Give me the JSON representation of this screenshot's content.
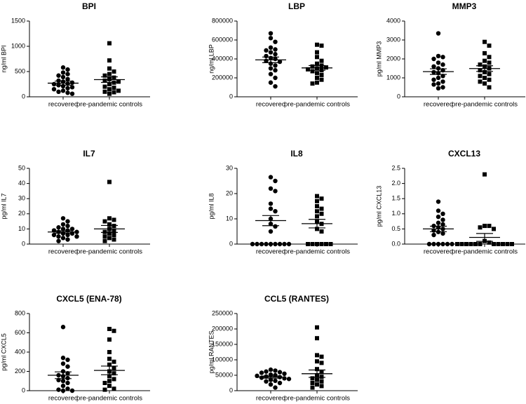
{
  "chart_data": [
    {
      "type": "dotplot",
      "title": "BPI",
      "ylabel": "ng/ml BPI",
      "categories": [
        "recovered",
        "pre-pandemic controls"
      ],
      "ylim": [
        0,
        1500
      ],
      "yticks": [
        0,
        500,
        1000,
        1500
      ],
      "groups": [
        {
          "marker": "circle",
          "values": [
            580,
            540,
            480,
            450,
            420,
            390,
            350,
            320,
            300,
            280,
            260,
            250,
            230,
            210,
            190,
            170,
            150,
            120,
            100,
            80,
            60
          ],
          "mean": 270,
          "sem": 40
        },
        {
          "marker": "square",
          "values": [
            1060,
            720,
            560,
            500,
            450,
            420,
            380,
            350,
            320,
            300,
            280,
            250,
            200,
            180,
            150,
            120,
            100,
            90,
            60
          ],
          "mean": 340,
          "sem": 55
        }
      ]
    },
    {
      "type": "dotplot",
      "title": "LBP",
      "ylabel": "ng/ml LBP",
      "categories": [
        "recovered",
        "pre-pandemic controls"
      ],
      "ylim": [
        0,
        800000
      ],
      "yticks": [
        0,
        200000,
        400000,
        600000,
        800000
      ],
      "groups": [
        {
          "marker": "circle",
          "values": [
            670000,
            620000,
            580000,
            520000,
            500000,
            490000,
            470000,
            450000,
            430000,
            410000,
            400000,
            380000,
            370000,
            350000,
            330000,
            300000,
            280000,
            240000,
            200000,
            150000,
            110000
          ],
          "mean": 390000,
          "sem": 30000
        },
        {
          "marker": "square",
          "values": [
            550000,
            540000,
            470000,
            420000,
            380000,
            350000,
            330000,
            320000,
            310000,
            300000,
            290000,
            280000,
            270000,
            250000,
            230000,
            200000,
            180000,
            150000,
            140000
          ],
          "mean": 305000,
          "sem": 25000
        }
      ]
    },
    {
      "type": "dotplot",
      "title": "MMP3",
      "ylabel": "pg/ml MMP3",
      "categories": [
        "recovered",
        "pre-pandemic controls"
      ],
      "ylim": [
        0,
        4000
      ],
      "yticks": [
        0,
        1000,
        2000,
        3000,
        4000
      ],
      "groups": [
        {
          "marker": "circle",
          "values": [
            3350,
            2150,
            2100,
            2000,
            1800,
            1700,
            1600,
            1500,
            1400,
            1300,
            1250,
            1100,
            1000,
            900,
            800,
            700,
            650,
            500,
            450
          ],
          "mean": 1330,
          "sem": 150
        },
        {
          "marker": "square",
          "values": [
            2900,
            2700,
            2300,
            2100,
            1900,
            1800,
            1700,
            1600,
            1500,
            1400,
            1300,
            1200,
            1100,
            1000,
            900,
            800,
            700,
            500
          ],
          "mean": 1490,
          "sem": 150
        }
      ]
    },
    {
      "type": "dotplot",
      "title": "IL7",
      "ylabel": "pg/ml IL7",
      "categories": [
        "recovered",
        "pre-pandemic controls"
      ],
      "ylim": [
        0,
        50
      ],
      "yticks": [
        0,
        10,
        20,
        30,
        40,
        50
      ],
      "groups": [
        {
          "marker": "circle",
          "values": [
            17,
            15,
            13,
            12,
            11,
            10,
            10,
            9,
            9,
            8,
            8,
            7,
            7,
            6,
            6,
            5,
            5,
            4,
            3,
            2
          ],
          "mean": 8,
          "sem": 0.8
        },
        {
          "marker": "square",
          "values": [
            41,
            17,
            16,
            15,
            13,
            12,
            10,
            9,
            8,
            7,
            6,
            5,
            4,
            3,
            2
          ],
          "mean": 10,
          "sem": 2.3
        }
      ]
    },
    {
      "type": "dotplot",
      "title": "IL8",
      "ylabel": "pg/ml IL8",
      "categories": [
        "recovered",
        "pre-pandemic controls"
      ],
      "ylim": [
        0,
        30
      ],
      "yticks": [
        0,
        10,
        20,
        30
      ],
      "groups": [
        {
          "marker": "circle",
          "values": [
            26.5,
            25,
            22,
            21,
            16,
            14,
            13,
            10,
            8,
            7,
            5,
            0,
            0,
            0,
            0,
            0,
            0,
            0,
            0,
            0
          ],
          "mean": 9.3,
          "sem": 2
        },
        {
          "marker": "square",
          "values": [
            19,
            18,
            17,
            15,
            14,
            13,
            12,
            11,
            9,
            8,
            6,
            5,
            0,
            0,
            0,
            0,
            0,
            0
          ],
          "mean": 8.1,
          "sem": 1.7
        }
      ]
    },
    {
      "type": "dotplot",
      "title": "CXCL13",
      "ylabel": "pg/ml CXCL13",
      "categories": [
        "recovered",
        "pre-pandemic controls"
      ],
      "ylim": [
        0,
        2.5
      ],
      "yticks": [
        {
          "value": 0,
          "label": "0.0"
        },
        0.5,
        {
          "value": 1,
          "label": "1.0"
        },
        1.5,
        {
          "value": 2,
          "label": "2.0"
        },
        2.5
      ],
      "groups": [
        {
          "marker": "circle",
          "values": [
            1.4,
            1.1,
            1.0,
            0.9,
            0.8,
            0.7,
            0.65,
            0.6,
            0.55,
            0.5,
            0.45,
            0.4,
            0.35,
            0.3,
            0,
            0,
            0,
            0,
            0,
            0
          ],
          "mean": 0.5,
          "sem": 0.09
        },
        {
          "marker": "square",
          "values": [
            2.3,
            0.6,
            0.6,
            0.55,
            0.5,
            0.1,
            0.05,
            0,
            0,
            0,
            0,
            0,
            0,
            0,
            0,
            0,
            0,
            0
          ],
          "mean": 0.22,
          "sem": 0.13
        }
      ]
    },
    {
      "type": "dotplot",
      "title": "CXCL5 (ENA-78)",
      "ylabel": "pg/ml CXCL5",
      "categories": [
        "recovered",
        "pre-pandemic controls"
      ],
      "ylim": [
        0,
        800
      ],
      "yticks": [
        0,
        200,
        400,
        600,
        800
      ],
      "groups": [
        {
          "marker": "circle",
          "values": [
            660,
            340,
            320,
            280,
            250,
            200,
            180,
            160,
            150,
            130,
            110,
            100,
            80,
            50,
            20,
            10,
            0,
            0
          ],
          "mean": 160,
          "sem": 35
        },
        {
          "marker": "square",
          "values": [
            640,
            620,
            530,
            400,
            330,
            300,
            270,
            230,
            200,
            180,
            150,
            120,
            100,
            80,
            50,
            20,
            10
          ],
          "mean": 210,
          "sem": 45
        }
      ]
    },
    {
      "type": "dotplot",
      "title": "CCL5 (RANTES)",
      "ylabel": "pg/ml RANTES",
      "categories": [
        "recovered",
        "pre-pandemic controls"
      ],
      "ylim": [
        0,
        250000
      ],
      "yticks": [
        0,
        50000,
        100000,
        150000,
        200000,
        250000
      ],
      "groups": [
        {
          "marker": "circle",
          "values": [
            68000,
            65000,
            62000,
            60000,
            58000,
            55000,
            52000,
            50000,
            48000,
            46000,
            44000,
            42000,
            40000,
            38000,
            35000,
            32000,
            30000,
            25000,
            20000,
            10000
          ],
          "mean": 44000,
          "sem": 3500
        },
        {
          "marker": "square",
          "values": [
            205000,
            170000,
            115000,
            110000,
            95000,
            90000,
            70000,
            60000,
            50000,
            45000,
            40000,
            35000,
            30000,
            25000,
            20000,
            15000,
            10000
          ],
          "mean": 55000,
          "sem": 12000
        }
      ]
    }
  ]
}
